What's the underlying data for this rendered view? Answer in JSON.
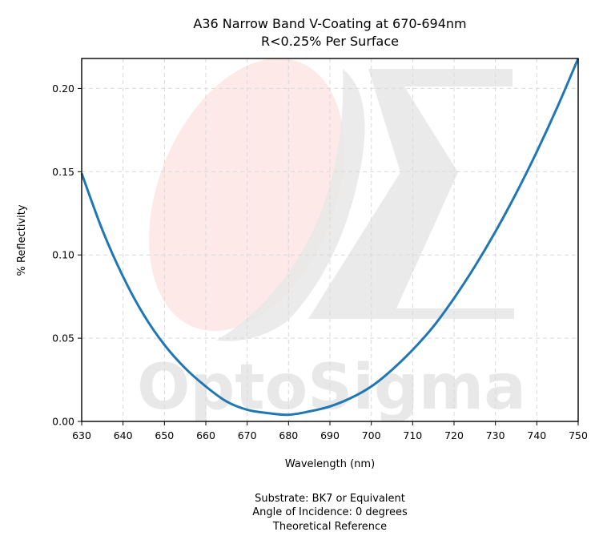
{
  "chart_data": {
    "type": "line",
    "title": "A36 Narrow Band V-Coating at 670-694nm",
    "subtitle": "R<0.25% Per Surface",
    "xlabel": "Wavelength (nm)",
    "ylabel": "% Reflectivity",
    "xlim": [
      630,
      750
    ],
    "ylim": [
      0,
      0.218
    ],
    "xticks": [
      630,
      640,
      650,
      660,
      670,
      680,
      690,
      700,
      710,
      720,
      730,
      740,
      750
    ],
    "yticks": [
      "0.00",
      "0.05",
      "0.10",
      "0.15",
      "0.20"
    ],
    "grid": true,
    "series": [
      {
        "color": "#1f77b4",
        "x": [
          630,
          635,
          640,
          645,
          650,
          655,
          660,
          665,
          670,
          675,
          680,
          685,
          690,
          695,
          700,
          705,
          710,
          715,
          720,
          725,
          730,
          735,
          740,
          745,
          750
        ],
        "y": [
          0.149,
          0.115,
          0.087,
          0.064,
          0.046,
          0.032,
          0.021,
          0.012,
          0.007,
          0.005,
          0.004,
          0.006,
          0.009,
          0.014,
          0.021,
          0.031,
          0.043,
          0.057,
          0.074,
          0.093,
          0.114,
          0.137,
          0.162,
          0.189,
          0.218
        ]
      }
    ],
    "watermark": "OptoSigma",
    "watermark_logo": "optosigma-sigma-logo"
  },
  "footer": {
    "line1": "Substrate: BK7 or Equivalent",
    "line2": "Angle of Incidence: 0 degrees",
    "line3": "Theoretical Reference"
  },
  "colors": {
    "line": "#1f77b4",
    "grid": "#d9d9d9",
    "watermark": "#e8e8e8",
    "watermark_ellipse": "#fde9e7"
  }
}
